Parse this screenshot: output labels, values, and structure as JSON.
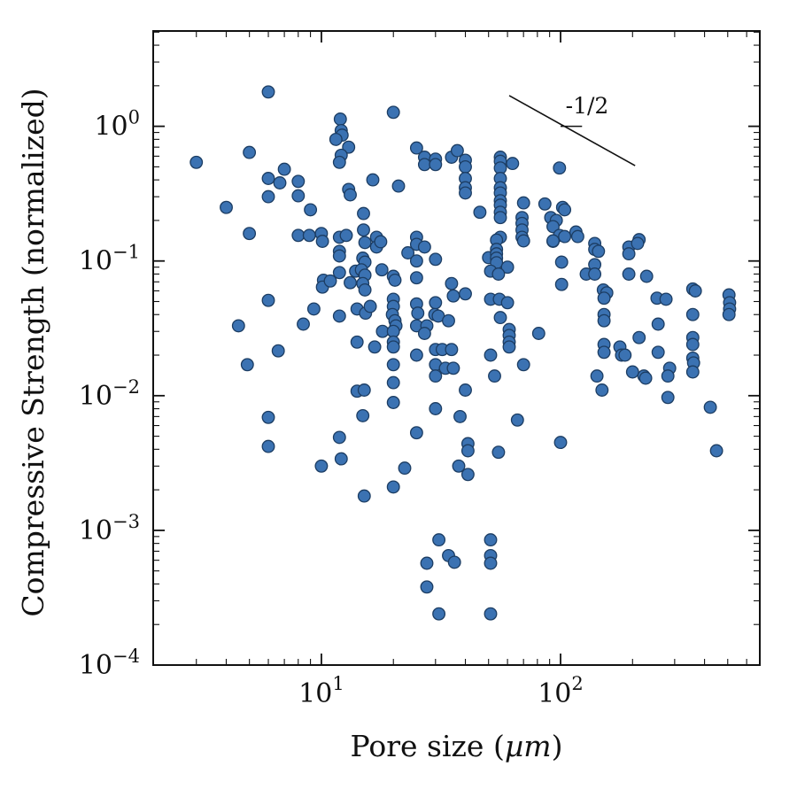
{
  "figure": {
    "ylabel": "Compressive Strength (normalized)",
    "xlabel_prefix": "Pore size (",
    "xlabel_math": "µm",
    "xlabel_suffix": ")"
  },
  "chart_data": {
    "type": "scatter",
    "title": "",
    "xlabel": "Pore size (µm)",
    "ylabel": "Compressive Strength (normalized)",
    "xscale": "log",
    "yscale": "log",
    "xlim": [
      1.98,
      681
    ],
    "ylim": [
      0.0001,
      5.1
    ],
    "grid": false,
    "legend": "none",
    "tick_style": "inward, mirrored on all four spines",
    "colors": {
      "marker_fill": "#3b72b2",
      "marker_edge": "#1c3d63",
      "axis": "#111111"
    },
    "x_ticks": {
      "major": [
        {
          "value": 10,
          "base": "10",
          "exp": "1"
        },
        {
          "value": 100,
          "base": "10",
          "exp": "2"
        }
      ]
    },
    "y_ticks": {
      "major": [
        {
          "value": 1,
          "base": "10",
          "exp": "0"
        },
        {
          "value": 0.1,
          "base": "10",
          "exp": "−1"
        },
        {
          "value": 0.01,
          "base": "10",
          "exp": "−2"
        },
        {
          "value": 0.001,
          "base": "10",
          "exp": "−3"
        },
        {
          "value": 0.0001,
          "base": "10",
          "exp": "−4"
        }
      ]
    },
    "guide_line": {
      "label": "-1/2",
      "x": [
        61,
        205
      ],
      "y": [
        1.69,
        0.51
      ],
      "angle_tick": {
        "x": [
          100,
          123
        ],
        "y": 1.0
      },
      "label_pos": [
        129,
        1.35
      ]
    },
    "points": [
      [
        6.0,
        1.8
      ],
      [
        20,
        1.27
      ],
      [
        12,
        1.13
      ],
      [
        12.1,
        0.93
      ],
      [
        12.2,
        0.86
      ],
      [
        11.5,
        0.8
      ],
      [
        13,
        0.7
      ],
      [
        5,
        0.64
      ],
      [
        3,
        0.54
      ],
      [
        12.1,
        0.61
      ],
      [
        11.9,
        0.54
      ],
      [
        7,
        0.48
      ],
      [
        6,
        0.41
      ],
      [
        6.7,
        0.38
      ],
      [
        8,
        0.39
      ],
      [
        6,
        0.3
      ],
      [
        8,
        0.305
      ],
      [
        13,
        0.34
      ],
      [
        13.2,
        0.31
      ],
      [
        4,
        0.25
      ],
      [
        9,
        0.24
      ],
      [
        5,
        0.16
      ],
      [
        8,
        0.155
      ],
      [
        8.9,
        0.155
      ],
      [
        10,
        0.16
      ],
      [
        10.1,
        0.14
      ],
      [
        11.9,
        0.15
      ],
      [
        12.7,
        0.155
      ],
      [
        11.9,
        0.118
      ],
      [
        11.9,
        0.109
      ],
      [
        25,
        0.69
      ],
      [
        27,
        0.59
      ],
      [
        27,
        0.52
      ],
      [
        30,
        0.57
      ],
      [
        30,
        0.52
      ],
      [
        35,
        0.59
      ],
      [
        37,
        0.66
      ],
      [
        40,
        0.56
      ],
      [
        40,
        0.5
      ],
      [
        56,
        0.59
      ],
      [
        56,
        0.55
      ],
      [
        56,
        0.49
      ],
      [
        63,
        0.53
      ],
      [
        16.4,
        0.4
      ],
      [
        21,
        0.36
      ],
      [
        40,
        0.41
      ],
      [
        40,
        0.35
      ],
      [
        40,
        0.32
      ],
      [
        56,
        0.41
      ],
      [
        56,
        0.35
      ],
      [
        56,
        0.32
      ],
      [
        56,
        0.28
      ],
      [
        56,
        0.26
      ],
      [
        70,
        0.27
      ],
      [
        86,
        0.265
      ],
      [
        46,
        0.23
      ],
      [
        56,
        0.23
      ],
      [
        56,
        0.21
      ],
      [
        15,
        0.225
      ],
      [
        15,
        0.17
      ],
      [
        17,
        0.15
      ],
      [
        25,
        0.15
      ],
      [
        25,
        0.133
      ],
      [
        56,
        0.15
      ],
      [
        69,
        0.21
      ],
      [
        69,
        0.19
      ],
      [
        69,
        0.17
      ],
      [
        69,
        0.15
      ],
      [
        91,
        0.21
      ],
      [
        96,
        0.2
      ],
      [
        93,
        0.18
      ],
      [
        99,
        0.49
      ],
      [
        102,
        0.25
      ],
      [
        104,
        0.24
      ],
      [
        99,
        0.155
      ],
      [
        104,
        0.152
      ],
      [
        116,
        0.164
      ],
      [
        118,
        0.152
      ],
      [
        93,
        0.14
      ],
      [
        213,
        0.144
      ],
      [
        6,
        0.051
      ],
      [
        9.3,
        0.044
      ],
      [
        11.9,
        0.039
      ],
      [
        8.4,
        0.034
      ],
      [
        4.5,
        0.033
      ],
      [
        6.6,
        0.0215
      ],
      [
        4.9,
        0.017
      ],
      [
        13.9,
        0.084
      ],
      [
        14.1,
        0.044
      ],
      [
        14.1,
        0.025
      ],
      [
        14.1,
        0.0108
      ],
      [
        10.2,
        0.072
      ],
      [
        10.1,
        0.064
      ],
      [
        10.9,
        0.071
      ],
      [
        11.9,
        0.082
      ],
      [
        13.2,
        0.069
      ],
      [
        6,
        0.0069
      ],
      [
        11.9,
        0.0049
      ],
      [
        6,
        0.0042
      ],
      [
        15.2,
        0.137
      ],
      [
        17,
        0.127
      ],
      [
        17.7,
        0.139
      ],
      [
        27,
        0.127
      ],
      [
        54,
        0.143
      ],
      [
        70,
        0.141
      ],
      [
        93,
        0.141
      ],
      [
        14.9,
        0.105
      ],
      [
        15.2,
        0.098
      ],
      [
        23,
        0.115
      ],
      [
        25,
        0.1
      ],
      [
        30,
        0.103
      ],
      [
        50,
        0.106
      ],
      [
        54,
        0.122
      ],
      [
        54,
        0.113
      ],
      [
        54,
        0.105
      ],
      [
        54,
        0.097
      ],
      [
        60,
        0.09
      ],
      [
        14.7,
        0.086
      ],
      [
        15.2,
        0.0785
      ],
      [
        17.9,
        0.086
      ],
      [
        20,
        0.077
      ],
      [
        20.3,
        0.072
      ],
      [
        25,
        0.075
      ],
      [
        14.9,
        0.068
      ],
      [
        15.2,
        0.061
      ],
      [
        35,
        0.068
      ],
      [
        35.6,
        0.055
      ],
      [
        40,
        0.057
      ],
      [
        51,
        0.084
      ],
      [
        55,
        0.08
      ],
      [
        51,
        0.052
      ],
      [
        55.5,
        0.052
      ],
      [
        60,
        0.049
      ],
      [
        15.3,
        0.041
      ],
      [
        16,
        0.046
      ],
      [
        20,
        0.052
      ],
      [
        20,
        0.046
      ],
      [
        19.8,
        0.04
      ],
      [
        20.3,
        0.036
      ],
      [
        20.5,
        0.033
      ],
      [
        25,
        0.048
      ],
      [
        25.3,
        0.041
      ],
      [
        30,
        0.049
      ],
      [
        29.8,
        0.04
      ],
      [
        30.8,
        0.039
      ],
      [
        25,
        0.033
      ],
      [
        27.6,
        0.033
      ],
      [
        27,
        0.029
      ],
      [
        34,
        0.036
      ],
      [
        56,
        0.038
      ],
      [
        18,
        0.03
      ],
      [
        20,
        0.03
      ],
      [
        61,
        0.031
      ],
      [
        61,
        0.028
      ],
      [
        61,
        0.025
      ],
      [
        61,
        0.023
      ],
      [
        81,
        0.029
      ],
      [
        16.7,
        0.023
      ],
      [
        20,
        0.025
      ],
      [
        20,
        0.023
      ],
      [
        25,
        0.02
      ],
      [
        30,
        0.022
      ],
      [
        32,
        0.022
      ],
      [
        35,
        0.022
      ],
      [
        51,
        0.02
      ],
      [
        70,
        0.017
      ],
      [
        20,
        0.017
      ],
      [
        30,
        0.017
      ],
      [
        33,
        0.016
      ],
      [
        35.6,
        0.016
      ],
      [
        30,
        0.014
      ],
      [
        53,
        0.014
      ],
      [
        20,
        0.0125
      ],
      [
        15.1,
        0.011
      ],
      [
        40,
        0.011
      ],
      [
        20,
        0.0089
      ],
      [
        14.9,
        0.0071
      ],
      [
        30,
        0.008
      ],
      [
        38,
        0.007
      ],
      [
        66,
        0.0066
      ],
      [
        25,
        0.0053
      ],
      [
        41,
        0.0044
      ],
      [
        41,
        0.0039
      ],
      [
        55,
        0.0038
      ],
      [
        101,
        0.098
      ],
      [
        101,
        0.067
      ],
      [
        128,
        0.08
      ],
      [
        139,
        0.135
      ],
      [
        139,
        0.122
      ],
      [
        144,
        0.118
      ],
      [
        139,
        0.094
      ],
      [
        139,
        0.08
      ],
      [
        193,
        0.127
      ],
      [
        193,
        0.113
      ],
      [
        210,
        0.135
      ],
      [
        193,
        0.08
      ],
      [
        229,
        0.077
      ],
      [
        151,
        0.061
      ],
      [
        156,
        0.058
      ],
      [
        152,
        0.053
      ],
      [
        253,
        0.053
      ],
      [
        276,
        0.052
      ],
      [
        357,
        0.062
      ],
      [
        366,
        0.06
      ],
      [
        506,
        0.056
      ],
      [
        509,
        0.049
      ],
      [
        509,
        0.044
      ],
      [
        506,
        0.04
      ],
      [
        357,
        0.04
      ],
      [
        152,
        0.04
      ],
      [
        152,
        0.036
      ],
      [
        256,
        0.034
      ],
      [
        213,
        0.027
      ],
      [
        152,
        0.024
      ],
      [
        152,
        0.021
      ],
      [
        177,
        0.023
      ],
      [
        180,
        0.02
      ],
      [
        186,
        0.02
      ],
      [
        256,
        0.021
      ],
      [
        357,
        0.027
      ],
      [
        357,
        0.024
      ],
      [
        357,
        0.019
      ],
      [
        360,
        0.0175
      ],
      [
        357,
        0.015
      ],
      [
        286,
        0.016
      ],
      [
        281,
        0.014
      ],
      [
        142,
        0.014
      ],
      [
        200,
        0.015
      ],
      [
        223,
        0.014
      ],
      [
        227,
        0.0135
      ],
      [
        149,
        0.011
      ],
      [
        281,
        0.0097
      ],
      [
        423,
        0.0082
      ],
      [
        100,
        0.0045
      ],
      [
        449,
        0.0039
      ],
      [
        10,
        0.003
      ],
      [
        12.1,
        0.0034
      ],
      [
        22.3,
        0.0029
      ],
      [
        37.5,
        0.003
      ],
      [
        41,
        0.0026
      ],
      [
        20,
        0.0021
      ],
      [
        15.1,
        0.0018
      ],
      [
        31,
        0.00085
      ],
      [
        51,
        0.00085
      ],
      [
        34,
        0.00065
      ],
      [
        36,
        0.00058
      ],
      [
        27.6,
        0.00057
      ],
      [
        51,
        0.00065
      ],
      [
        51,
        0.00057
      ],
      [
        27.6,
        0.00038
      ],
      [
        31,
        0.00024
      ],
      [
        51,
        0.00024
      ]
    ]
  }
}
